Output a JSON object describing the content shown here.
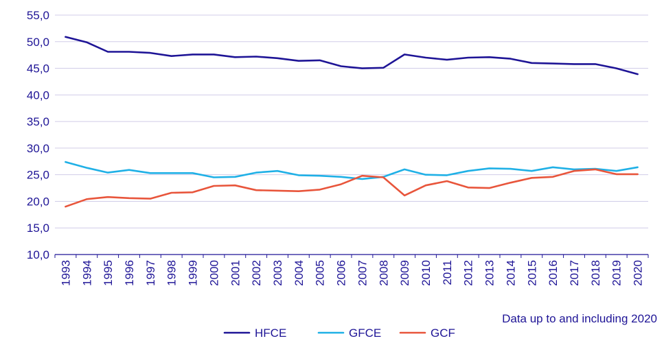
{
  "chart_data": {
    "type": "line",
    "x": [
      "1993",
      "1994",
      "1995",
      "1996",
      "1997",
      "1998",
      "1999",
      "2000",
      "2001",
      "2002",
      "2003",
      "2004",
      "2005",
      "2006",
      "2007",
      "2008",
      "2009",
      "2010",
      "2011",
      "2012",
      "2013",
      "2014",
      "2015",
      "2016",
      "2017",
      "2018",
      "2019",
      "2020"
    ],
    "series": [
      {
        "name": "HFCE",
        "color": "#1e1496",
        "values": [
          50.9,
          49.9,
          48.1,
          48.1,
          47.9,
          47.3,
          47.6,
          47.6,
          47.1,
          47.2,
          46.9,
          46.4,
          46.5,
          45.4,
          45.0,
          45.1,
          47.6,
          47.0,
          46.6,
          47.0,
          47.1,
          46.8,
          46.0,
          45.9,
          45.8,
          45.8,
          45.0,
          43.9
        ]
      },
      {
        "name": "GFCE",
        "color": "#1fb0e6",
        "values": [
          27.4,
          26.3,
          25.4,
          25.9,
          25.3,
          25.3,
          25.3,
          24.5,
          24.6,
          25.4,
          25.7,
          24.9,
          24.8,
          24.6,
          24.2,
          24.6,
          26.0,
          25.0,
          24.9,
          25.7,
          26.2,
          26.1,
          25.7,
          26.4,
          26.0,
          26.1,
          25.7,
          26.4
        ]
      },
      {
        "name": "GCF",
        "color": "#e8553b",
        "values": [
          19.0,
          20.4,
          20.8,
          20.6,
          20.5,
          21.6,
          21.7,
          22.9,
          23.0,
          22.1,
          22.0,
          21.9,
          22.2,
          23.2,
          24.8,
          24.5,
          21.1,
          23.0,
          23.8,
          22.6,
          22.5,
          23.5,
          24.4,
          24.6,
          25.7,
          26.0,
          25.1,
          25.1
        ]
      }
    ],
    "y_ticks": [
      "10,0",
      "15,0",
      "20,0",
      "25,0",
      "30,0",
      "35,0",
      "40,0",
      "45,0",
      "50,0",
      "55,0"
    ],
    "ylim": [
      10,
      55
    ],
    "note": "Data up to and including 2020",
    "grid": "horizontal",
    "legend_position": "bottom"
  }
}
